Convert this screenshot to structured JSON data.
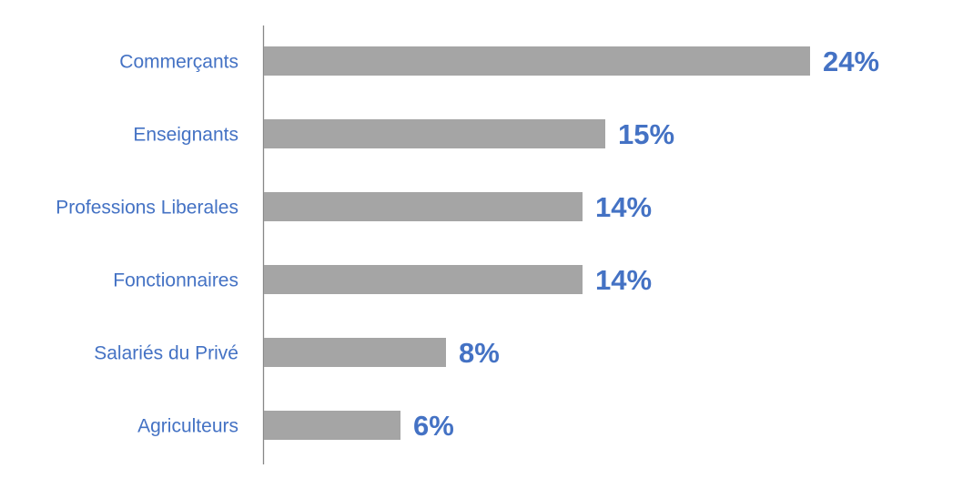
{
  "chart_data": {
    "type": "bar",
    "orientation": "horizontal",
    "categories": [
      "Commerçants",
      "Enseignants",
      "Professions Liberales",
      "Fonctionnaires",
      "Salariés du Privé",
      "Agriculteurs"
    ],
    "values": [
      24,
      15,
      14,
      14,
      8,
      6
    ],
    "value_labels": [
      "24%",
      "15%",
      "14%",
      "14%",
      "8%",
      "6%"
    ],
    "color": "#a5a5a5",
    "label_color": "#4472c4"
  }
}
